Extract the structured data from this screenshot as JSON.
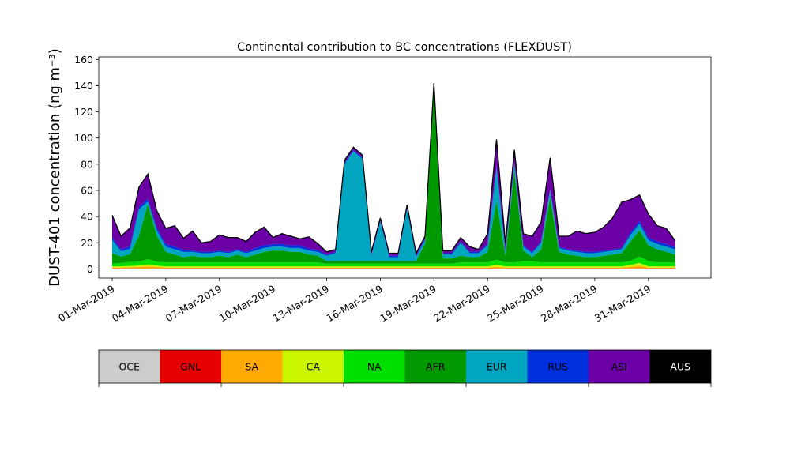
{
  "chart_data": {
    "type": "area",
    "stacked": true,
    "title": "Continental contribution to BC concentrations (FLEXDUST)",
    "ylabel": "DUST-401 concentration (ng m⁻³)",
    "xlabel": "",
    "xlim": [
      "2019-02-28T06:00",
      "2019-04-03T12:00"
    ],
    "ylim": [
      -7,
      162
    ],
    "yticks": [
      0,
      20,
      40,
      60,
      80,
      100,
      120,
      140,
      160
    ],
    "xticks": [
      "2019-03-01",
      "2019-03-04",
      "2019-03-07",
      "2019-03-10",
      "2019-03-13",
      "2019-03-16",
      "2019-03-19",
      "2019-03-22",
      "2019-03-25",
      "2019-03-28",
      "2019-03-31"
    ],
    "xtick_labels": [
      "01-Mar-2019",
      "04-Mar-2019",
      "07-Mar-2019",
      "10-Mar-2019",
      "13-Mar-2019",
      "16-Mar-2019",
      "19-Mar-2019",
      "22-Mar-2019",
      "25-Mar-2019",
      "28-Mar-2019",
      "31-Mar-2019"
    ],
    "grid": false,
    "total_line_color": "#000000",
    "x": [
      "2019-03-01T00:00",
      "2019-03-01T12:00",
      "2019-03-02T00:00",
      "2019-03-02T12:00",
      "2019-03-03T00:00",
      "2019-03-03T12:00",
      "2019-03-04T00:00",
      "2019-03-04T12:00",
      "2019-03-05T00:00",
      "2019-03-05T12:00",
      "2019-03-06T00:00",
      "2019-03-06T12:00",
      "2019-03-07T00:00",
      "2019-03-07T12:00",
      "2019-03-08T00:00",
      "2019-03-08T12:00",
      "2019-03-09T00:00",
      "2019-03-09T12:00",
      "2019-03-10T00:00",
      "2019-03-10T12:00",
      "2019-03-11T00:00",
      "2019-03-11T12:00",
      "2019-03-12T00:00",
      "2019-03-12T12:00",
      "2019-03-13T00:00",
      "2019-03-13T12:00",
      "2019-03-14T00:00",
      "2019-03-14T12:00",
      "2019-03-15T00:00",
      "2019-03-15T12:00",
      "2019-03-16T00:00",
      "2019-03-16T12:00",
      "2019-03-17T00:00",
      "2019-03-17T12:00",
      "2019-03-18T00:00",
      "2019-03-18T12:00",
      "2019-03-19T00:00",
      "2019-03-19T12:00",
      "2019-03-20T00:00",
      "2019-03-20T12:00",
      "2019-03-21T00:00",
      "2019-03-21T12:00",
      "2019-03-22T00:00",
      "2019-03-22T12:00",
      "2019-03-23T00:00",
      "2019-03-23T12:00",
      "2019-03-24T00:00",
      "2019-03-24T12:00",
      "2019-03-25T00:00",
      "2019-03-25T12:00",
      "2019-03-26T00:00",
      "2019-03-26T12:00",
      "2019-03-27T00:00",
      "2019-03-27T12:00",
      "2019-03-28T00:00",
      "2019-03-28T12:00",
      "2019-03-29T00:00",
      "2019-03-29T12:00",
      "2019-03-30T00:00",
      "2019-03-30T12:00",
      "2019-03-31T00:00",
      "2019-03-31T12:00",
      "2019-04-01T00:00",
      "2019-04-01T12:00"
    ],
    "series": [
      {
        "name": "OCE",
        "color": "#cccccc",
        "values": [
          0.3,
          0.3,
          0.3,
          0.3,
          0.3,
          0.3,
          0.3,
          0.3,
          0.3,
          0.3,
          0.3,
          0.3,
          0.3,
          0.3,
          0.3,
          0.3,
          0.3,
          0.3,
          0.3,
          0.3,
          0.3,
          0.3,
          0.3,
          0.3,
          0.3,
          0.3,
          0.3,
          0.3,
          0.3,
          0.3,
          0.3,
          0.3,
          0.3,
          0.3,
          0.3,
          0.3,
          0.3,
          0.3,
          0.3,
          0.3,
          0.3,
          0.3,
          0.3,
          0.3,
          0.3,
          0.3,
          0.3,
          0.3,
          0.3,
          0.3,
          0.3,
          0.3,
          0.3,
          0.3,
          0.3,
          0.3,
          0.3,
          0.3,
          0.3,
          0.3,
          0.3,
          0.3,
          0.3,
          0.3
        ]
      },
      {
        "name": "GNL",
        "color": "#e60000",
        "values": [
          0.2,
          0.2,
          0.2,
          0.2,
          0.2,
          0.2,
          0.2,
          0.2,
          0.2,
          0.2,
          0.2,
          0.2,
          0.2,
          0.2,
          0.2,
          0.2,
          0.2,
          0.2,
          0.2,
          0.2,
          0.2,
          0.2,
          0.2,
          0.2,
          0.2,
          0.2,
          0.2,
          0.2,
          0.2,
          0.2,
          0.2,
          0.2,
          0.2,
          0.2,
          0.2,
          0.2,
          0.2,
          0.2,
          0.2,
          0.2,
          0.2,
          0.2,
          0.2,
          0.2,
          0.2,
          0.2,
          0.2,
          0.2,
          0.2,
          0.2,
          0.2,
          0.2,
          0.2,
          0.2,
          0.2,
          0.2,
          0.2,
          0.2,
          0.2,
          0.2,
          0.2,
          0.2,
          0.2,
          0.2
        ]
      },
      {
        "name": "SA",
        "color": "#ffaa00",
        "values": [
          0.5,
          0.5,
          0.8,
          1,
          1.5,
          1,
          0.5,
          0.5,
          0.5,
          0.5,
          0.5,
          0.5,
          0.5,
          0.5,
          0.5,
          0.5,
          0.5,
          0.5,
          0.5,
          0.5,
          0.5,
          0.5,
          0.5,
          0.5,
          0.5,
          0.5,
          0.5,
          0.5,
          0.5,
          0.5,
          0.5,
          0.5,
          0.5,
          0.5,
          0.5,
          0.5,
          0.5,
          0.5,
          0.5,
          0.5,
          0.5,
          0.5,
          0.5,
          1,
          0.5,
          0.5,
          0.5,
          0.5,
          0.5,
          0.5,
          0.5,
          0.5,
          0.5,
          0.5,
          0.5,
          0.5,
          0.5,
          0.5,
          1,
          2,
          0.5,
          0.5,
          0.5,
          0.5
        ]
      },
      {
        "name": "CA",
        "color": "#ccf500",
        "values": [
          1,
          1,
          1,
          1,
          1.5,
          1,
          1,
          1,
          1,
          1,
          1,
          1,
          1,
          1,
          1,
          1,
          1,
          1,
          1,
          1,
          1,
          1,
          1,
          1,
          1,
          1,
          1,
          1,
          1,
          1,
          1,
          1,
          1,
          1,
          1,
          1,
          1,
          1,
          1,
          1,
          1,
          1,
          1,
          1.5,
          1,
          1,
          1,
          1,
          1,
          1,
          1,
          1,
          1,
          1,
          1,
          1,
          1,
          1,
          1.5,
          2,
          1,
          1,
          1,
          1
        ]
      },
      {
        "name": "NA",
        "color": "#00e000",
        "values": [
          2,
          2.5,
          3,
          3,
          4,
          3,
          3,
          3,
          3,
          3,
          3,
          3,
          3,
          3,
          3,
          3,
          3,
          3,
          3,
          3,
          3,
          3,
          3,
          3,
          2,
          2,
          2,
          2,
          2,
          2,
          2,
          2,
          2,
          2,
          2,
          2,
          2,
          2,
          2,
          3,
          3,
          3,
          3,
          4,
          3,
          3,
          4,
          4,
          3,
          3,
          3,
          3,
          3,
          3,
          3,
          3,
          3,
          3,
          3,
          5,
          4,
          3,
          3,
          3
        ]
      },
      {
        "name": "AFR",
        "color": "#009a00",
        "values": [
          8,
          5,
          6,
          20,
          42,
          20,
          8,
          6,
          4,
          5,
          4,
          4,
          5,
          4,
          6,
          4,
          6,
          8,
          9,
          9,
          8,
          8,
          6,
          5,
          2,
          2,
          2,
          2,
          2,
          2,
          2,
          2,
          2,
          2,
          2,
          15,
          132,
          4,
          4,
          5,
          4,
          4,
          8,
          45,
          5,
          70,
          8,
          3,
          10,
          50,
          8,
          6,
          5,
          4,
          4,
          5,
          6,
          7,
          15,
          20,
          12,
          10,
          8,
          6
        ]
      },
      {
        "name": "EUR",
        "color": "#00a6bf",
        "values": [
          10,
          4,
          4,
          20,
          2,
          4,
          4,
          4,
          4,
          3,
          3,
          3,
          3,
          3,
          3,
          3,
          3,
          3,
          3,
          3,
          3,
          3,
          3,
          3,
          4,
          6,
          74,
          84,
          78,
          4,
          30,
          3,
          3,
          40,
          3,
          3,
          3,
          3,
          3,
          10,
          3,
          3,
          5,
          25,
          3,
          5,
          3,
          3,
          5,
          5,
          3,
          3,
          3,
          3,
          3,
          3,
          3,
          3,
          5,
          5,
          4,
          4,
          4,
          4
        ]
      },
      {
        "name": "RUS",
        "color": "#0030dd",
        "values": [
          2,
          1.5,
          2,
          2,
          2,
          2,
          2,
          2,
          1.5,
          1,
          1,
          1,
          1,
          1,
          1,
          1,
          2,
          2,
          2,
          2,
          2,
          2,
          1.5,
          1.5,
          1,
          1,
          1,
          1,
          1,
          1,
          1,
          1,
          1,
          1,
          1,
          1,
          1,
          1,
          1,
          1,
          1,
          1,
          1,
          2,
          1,
          1,
          1,
          1,
          1,
          1,
          1,
          1,
          1,
          1,
          1,
          1,
          1,
          1,
          2,
          2,
          2,
          2,
          2,
          1.5
        ]
      },
      {
        "name": "ASI",
        "color": "#6a00a6",
        "values": [
          17,
          10,
          14,
          15,
          19,
          13,
          12,
          16,
          9,
          15,
          7,
          8,
          12,
          11,
          9,
          8,
          12,
          14,
          5,
          8,
          7,
          5,
          9,
          5,
          2,
          2,
          2,
          2,
          2,
          2,
          2,
          2,
          2,
          2,
          2,
          2,
          2,
          2,
          2,
          3,
          4,
          2,
          8,
          20,
          6,
          10,
          9,
          12,
          15,
          24,
          8,
          10,
          15,
          14,
          15,
          18,
          24,
          35,
          25,
          20,
          18,
          12,
          12,
          5
        ]
      },
      {
        "name": "AUS",
        "color": "#000000",
        "values": [
          0,
          0,
          0,
          0,
          0,
          0,
          0,
          0,
          0,
          0,
          0,
          0,
          0,
          0,
          0,
          0,
          0,
          0,
          0,
          0,
          0,
          0,
          0,
          0,
          0,
          0,
          0,
          0,
          0,
          0,
          0,
          0,
          0,
          0,
          0,
          0,
          0,
          0,
          0,
          0,
          0,
          0,
          0,
          0,
          0,
          0,
          0,
          0,
          0,
          0,
          0,
          0,
          0,
          0,
          0,
          0,
          0,
          0,
          0,
          0,
          0,
          0,
          0,
          0
        ]
      }
    ]
  },
  "legend": {
    "items": [
      {
        "label": "OCE",
        "color": "#cccccc",
        "text_color": "#000000"
      },
      {
        "label": "GNL",
        "color": "#e60000",
        "text_color": "#000000"
      },
      {
        "label": "SA",
        "color": "#ffaa00",
        "text_color": "#000000"
      },
      {
        "label": "CA",
        "color": "#ccf500",
        "text_color": "#000000"
      },
      {
        "label": "NA",
        "color": "#00e000",
        "text_color": "#000000"
      },
      {
        "label": "AFR",
        "color": "#009a00",
        "text_color": "#000000"
      },
      {
        "label": "EUR",
        "color": "#00a6bf",
        "text_color": "#000000"
      },
      {
        "label": "RUS",
        "color": "#0030dd",
        "text_color": "#000000"
      },
      {
        "label": "ASI",
        "color": "#6a00a6",
        "text_color": "#000000"
      },
      {
        "label": "AUS",
        "color": "#000000",
        "text_color": "#ffffff"
      }
    ]
  }
}
